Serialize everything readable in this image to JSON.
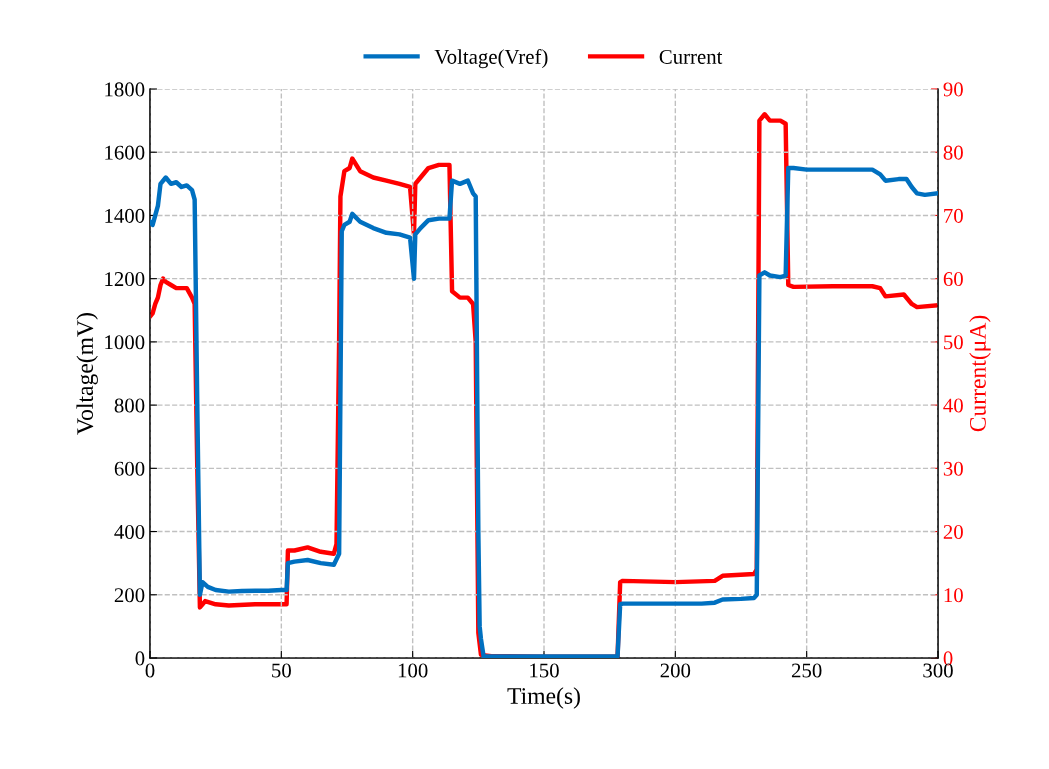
{
  "chart_data": {
    "type": "line",
    "xlabel": "Time(s)",
    "ylabel": "Voltage(mV)",
    "y2label": "Current(μA)",
    "xlim": [
      0,
      300
    ],
    "xticks": [
      0,
      50,
      100,
      150,
      200,
      250,
      300
    ],
    "ylim": [
      0,
      1800
    ],
    "yticks": [
      0,
      200,
      400,
      600,
      800,
      1000,
      1200,
      1400,
      1600,
      1800
    ],
    "y2lim": [
      0,
      90
    ],
    "y2ticks": [
      0,
      10,
      20,
      30,
      40,
      50,
      60,
      70,
      80,
      90
    ],
    "grid": true,
    "legend": "top",
    "marker": "none",
    "line_style": "solid",
    "series": [
      {
        "name": "Voltage(Vref)",
        "color": "#0070c0",
        "x": [
          0,
          1,
          2,
          3,
          4,
          6,
          8,
          10,
          12,
          14,
          16,
          17,
          18,
          19,
          20,
          22,
          25,
          30,
          35,
          40,
          45,
          50,
          52,
          52.5,
          55,
          60,
          65,
          70,
          72,
          73,
          74,
          76,
          77,
          80,
          85,
          90,
          95,
          99,
          100.5,
          101,
          103,
          106,
          110,
          114,
          115,
          118,
          121,
          123,
          124,
          125,
          125.5,
          126,
          127,
          130,
          150,
          170,
          178,
          179,
          180,
          190,
          200,
          210,
          215,
          218,
          225,
          230,
          231,
          232,
          234,
          236,
          240,
          242,
          243,
          245,
          250,
          260,
          270,
          275,
          278,
          280,
          285,
          288,
          290,
          292,
          295,
          300
        ],
        "values": [
          1380,
          1370,
          1400,
          1430,
          1500,
          1520,
          1500,
          1505,
          1490,
          1495,
          1480,
          1450,
          800,
          200,
          240,
          225,
          215,
          210,
          212,
          213,
          213,
          215,
          215,
          300,
          305,
          310,
          300,
          295,
          330,
          1350,
          1370,
          1380,
          1405,
          1380,
          1360,
          1345,
          1340,
          1330,
          1200,
          1340,
          1360,
          1385,
          1390,
          1390,
          1510,
          1500,
          1510,
          1470,
          1460,
          400,
          100,
          60,
          5,
          5,
          5,
          5,
          5,
          170,
          172,
          172,
          172,
          172,
          175,
          185,
          187,
          190,
          200,
          1210,
          1220,
          1210,
          1205,
          1210,
          1550,
          1550,
          1545,
          1545,
          1545,
          1545,
          1530,
          1510,
          1515,
          1515,
          1490,
          1470,
          1465,
          1470
        ]
      },
      {
        "name": "Current",
        "color": "#ff0000",
        "axis": "y2",
        "x": [
          0,
          1,
          2,
          3,
          4,
          5,
          6,
          8,
          10,
          14,
          16,
          17,
          18,
          19,
          20,
          21,
          25,
          30,
          40,
          50,
          52,
          52.5,
          55,
          60,
          65,
          70,
          71,
          72,
          72.5,
          74,
          76,
          77,
          80,
          85,
          90,
          95,
          99,
          100.5,
          101,
          103,
          106,
          110,
          114,
          115,
          118,
          121,
          123,
          124,
          125,
          126,
          130,
          150,
          170,
          178,
          179,
          180,
          200,
          215,
          218,
          230,
          231,
          232,
          234,
          236,
          240,
          242,
          243,
          245,
          260,
          275,
          278,
          280,
          287,
          290,
          292,
          300
        ],
        "values": [
          54,
          54.5,
          56,
          57,
          59,
          60,
          59.5,
          59,
          58.5,
          58.5,
          57,
          56,
          30,
          8,
          8.5,
          9,
          8.5,
          8.3,
          8.5,
          8.5,
          8.5,
          17,
          17,
          17.5,
          16.8,
          16.5,
          18,
          50,
          73,
          77,
          77.5,
          79,
          77,
          76,
          75.5,
          75,
          74.5,
          67,
          75,
          76,
          77.5,
          78,
          78,
          58,
          57,
          57,
          56,
          50,
          4,
          0.5,
          0.3,
          0.2,
          0.2,
          0.2,
          12,
          12.2,
          12,
          12.2,
          13,
          13.3,
          14,
          85,
          86,
          85,
          85,
          84.5,
          59,
          58.7,
          58.8,
          58.8,
          58.5,
          57.2,
          57.5,
          56,
          55.5,
          55.8
        ]
      }
    ]
  }
}
